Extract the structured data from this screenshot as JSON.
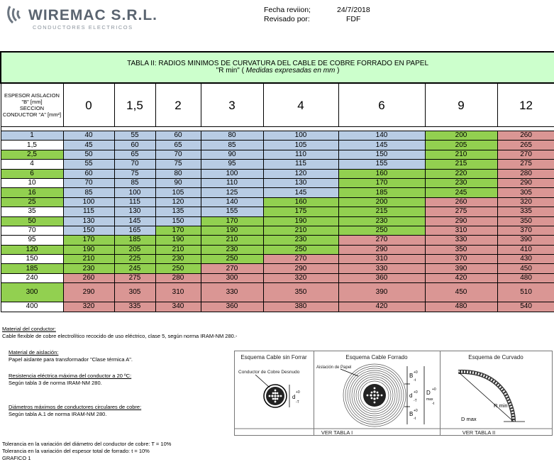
{
  "header": {
    "company": "WIREMAC S.R.L.",
    "tagline": "CONDUCTORES ELECTRICOS",
    "revision_label": "Fecha reviion;",
    "revision_date": "24/7/2018",
    "reviewed_label": "Revisado por:",
    "reviewed_by": "FDF"
  },
  "table": {
    "title_line1": "TABLA II: RADIOS MINIMOS DE CURVATURA DEL CABLE DE COBRE FORRADO EN PAPEL",
    "title_line2_a": "\"R min\" ( ",
    "title_line2_b": "Medidas expresadas en mm",
    "title_line2_c": " )",
    "corner_label": [
      "ESPESOR AISLACION",
      "\"B\" [mm]",
      "SECCION",
      "CONDUCTOR \"A\"  [mm²]"
    ],
    "columns": [
      "0",
      "1,5",
      "2",
      "3",
      "4",
      "6",
      "9",
      "12"
    ],
    "rows": [
      {
        "section": "1",
        "values": [
          "40",
          "55",
          "60",
          "80",
          "100",
          "140",
          "200",
          "260"
        ],
        "colors": [
          "b",
          "b",
          "b",
          "b",
          "b",
          "b",
          "g",
          "r"
        ]
      },
      {
        "section": "1,5",
        "values": [
          "45",
          "60",
          "65",
          "85",
          "105",
          "145",
          "205",
          "265"
        ],
        "colors": [
          "b",
          "b",
          "b",
          "b",
          "b",
          "b",
          "g",
          "r"
        ]
      },
      {
        "section": "2,5",
        "values": [
          "50",
          "65",
          "70",
          "90",
          "110",
          "150",
          "210",
          "270"
        ],
        "colors": [
          "b",
          "b",
          "b",
          "b",
          "b",
          "b",
          "g",
          "r"
        ]
      },
      {
        "section": "4",
        "values": [
          "55",
          "70",
          "75",
          "95",
          "115",
          "155",
          "215",
          "275"
        ],
        "colors": [
          "b",
          "b",
          "b",
          "b",
          "b",
          "b",
          "g",
          "r"
        ]
      },
      {
        "section": "6",
        "values": [
          "60",
          "75",
          "80",
          "100",
          "120",
          "160",
          "220",
          "280"
        ],
        "colors": [
          "b",
          "b",
          "b",
          "b",
          "b",
          "g",
          "g",
          "r"
        ]
      },
      {
        "section": "10",
        "values": [
          "70",
          "85",
          "90",
          "110",
          "130",
          "170",
          "230",
          "290"
        ],
        "colors": [
          "b",
          "b",
          "b",
          "b",
          "b",
          "g",
          "g",
          "r"
        ]
      },
      {
        "section": "16",
        "values": [
          "85",
          "100",
          "105",
          "125",
          "145",
          "185",
          "245",
          "305"
        ],
        "colors": [
          "b",
          "b",
          "b",
          "b",
          "b",
          "g",
          "g",
          "r"
        ]
      },
      {
        "section": "25",
        "values": [
          "100",
          "115",
          "120",
          "140",
          "160",
          "200",
          "260",
          "320"
        ],
        "colors": [
          "b",
          "b",
          "b",
          "b",
          "g",
          "g",
          "r",
          "r"
        ]
      },
      {
        "section": "35",
        "values": [
          "115",
          "130",
          "135",
          "155",
          "175",
          "215",
          "275",
          "335"
        ],
        "colors": [
          "b",
          "b",
          "b",
          "b",
          "g",
          "g",
          "r",
          "r"
        ]
      },
      {
        "section": "50",
        "values": [
          "130",
          "145",
          "150",
          "170",
          "190",
          "230",
          "290",
          "350"
        ],
        "colors": [
          "b",
          "b",
          "b",
          "g",
          "g",
          "g",
          "r",
          "r"
        ]
      },
      {
        "section": "70",
        "values": [
          "150",
          "165",
          "170",
          "190",
          "210",
          "250",
          "310",
          "370"
        ],
        "colors": [
          "b",
          "b",
          "g",
          "g",
          "g",
          "g",
          "r",
          "r"
        ]
      },
      {
        "section": "95",
        "values": [
          "170",
          "185",
          "190",
          "210",
          "230",
          "270",
          "330",
          "390"
        ],
        "colors": [
          "g",
          "g",
          "g",
          "g",
          "g",
          "r",
          "r",
          "r"
        ]
      },
      {
        "section": "120",
        "values": [
          "190",
          "205",
          "210",
          "230",
          "250",
          "290",
          "350",
          "410"
        ],
        "colors": [
          "g",
          "g",
          "g",
          "g",
          "g",
          "r",
          "r",
          "r"
        ]
      },
      {
        "section": "150",
        "values": [
          "210",
          "225",
          "230",
          "250",
          "270",
          "310",
          "370",
          "430"
        ],
        "colors": [
          "g",
          "g",
          "g",
          "g",
          "r",
          "r",
          "r",
          "r"
        ]
      },
      {
        "section": "185",
        "values": [
          "230",
          "245",
          "250",
          "270",
          "290",
          "330",
          "390",
          "450"
        ],
        "colors": [
          "g",
          "g",
          "g",
          "r",
          "r",
          "r",
          "r",
          "r"
        ]
      },
      {
        "section": "240",
        "values": [
          "260",
          "275",
          "280",
          "300",
          "320",
          "360",
          "420",
          "480"
        ],
        "colors": [
          "r",
          "r",
          "r",
          "r",
          "r",
          "r",
          "r",
          "r"
        ]
      },
      {
        "section": "300",
        "values": [
          "290",
          "305",
          "310",
          "330",
          "350",
          "390",
          "450",
          "510"
        ],
        "colors": [
          "r",
          "r",
          "r",
          "r",
          "r",
          "r",
          "r",
          "r"
        ]
      },
      {
        "section": "400",
        "values": [
          "320",
          "335",
          "340",
          "360",
          "380",
          "420",
          "480",
          "540"
        ],
        "colors": [
          "r",
          "r",
          "r",
          "r",
          "r",
          "r",
          "r",
          "r"
        ]
      }
    ],
    "section_colors": [
      "b",
      "w",
      "g",
      "w",
      "g",
      "w",
      "g",
      "g",
      "w",
      "g",
      "w",
      "w",
      "g",
      "w",
      "g",
      "w",
      "g",
      "w"
    ]
  },
  "notes": {
    "material_title": "Material del conductor:",
    "material_text": "Cable flexible de cobre electrolítico recocido de uso eléctrico, clase 5, según norma IRAM-NM 280.-",
    "insulation_title": "Material de aislación:",
    "insulation_text": "Papel aislante para transformador \"Clase térmica A\".",
    "resistance_title": "Resistencia eléctrica máxima del conductor a 20 ºC:",
    "resistance_text": "Según tabla 3 de norma IRAM-NM 280.",
    "diameters_title": "Diámetros máximos de conductores circulares de cobre:",
    "diameters_text": "Según tabla A.1 de norma IRAM-NM 280.",
    "tol1": "Tolerancia en la variación del diámetro del conductor de cobre: T = 10%",
    "tol2": "Tolerancia en la variación del espesor total de forrado: t = 10%",
    "grafico": "GRAFICO 1"
  },
  "diagram": {
    "box1_title": "Esquema Cable sin Forrar",
    "box1_label": "Conductor de Cobre Desnudo",
    "box2_title": "Esquema Cable Forrado",
    "box2_label": "Aislación de Papel",
    "box3_title": "Esquema de Curvado",
    "ref1": "VER TABLA I",
    "ref2": "VER TABLA II",
    "r_min": "R min",
    "d_max": "D max",
    "dim_b": "B",
    "dim_d": "d",
    "dim_dmax_a": "D",
    "dim_dmax_b": "max",
    "tol_pos_t": "+0",
    "tol_neg_t": "-T",
    "tol_neg_small_t": "-t"
  }
}
